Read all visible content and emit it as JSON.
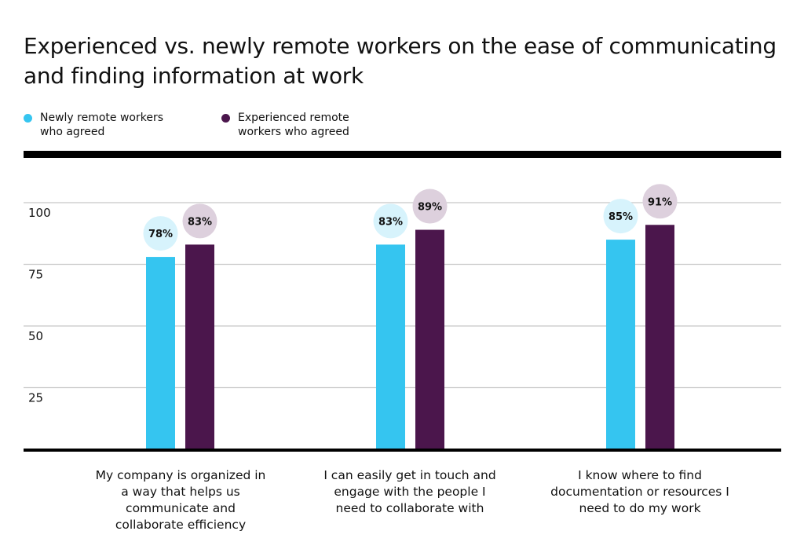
{
  "chart_data": {
    "type": "bar",
    "title": "Experienced vs. newly remote workers on the ease of communicating and finding information at work",
    "categories": [
      "My company is organized in a way that helps us communicate and collaborate efficiency",
      "I can easily get in touch and engage with the people I need to collaborate with",
      "I know where to find documentation or resources I need to do my work"
    ],
    "series": [
      {
        "name": "Newly remote workers who agreed",
        "values": [
          78,
          83,
          85
        ],
        "labels": [
          "78%",
          "83%",
          "85%"
        ],
        "color": "#35c5f0",
        "bubble_color": "#d7f3fc"
      },
      {
        "name": "Experienced remote workers who agreed",
        "values": [
          83,
          89,
          91
        ],
        "labels": [
          "83%",
          "89%",
          "91%"
        ],
        "color": "#4b164c",
        "bubble_color": "#ddd0dd"
      }
    ],
    "yticks": [
      25,
      50,
      75,
      100
    ],
    "ylim": [
      0,
      100
    ],
    "grid": true,
    "legend_placement": "top-left"
  }
}
